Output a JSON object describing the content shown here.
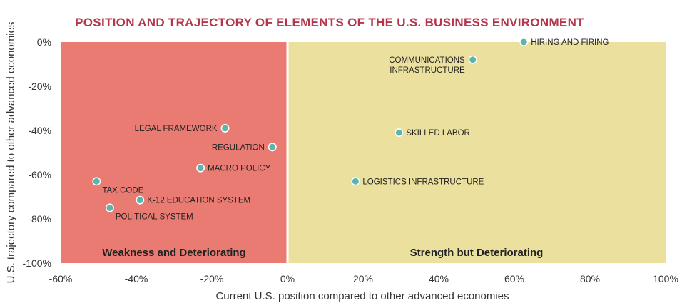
{
  "chart_data": {
    "type": "scatter",
    "title": "POSITION AND TRAJECTORY OF ELEMENTS OF THE U.S. BUSINESS ENVIRONMENT",
    "xlabel": "Current U.S. position compared to other advanced economies",
    "ylabel": "U.S. trajectory compared to other advanced economies",
    "xlim": [
      -60,
      100
    ],
    "ylim": [
      -100,
      0
    ],
    "x_ticks": [
      "-60%",
      "-40%",
      "-20%",
      "0%",
      "20%",
      "40%",
      "60%",
      "80%",
      "100%"
    ],
    "y_ticks": [
      "0%",
      "-20%",
      "-40%",
      "-60%",
      "-80%",
      "-100%"
    ],
    "x_tick_values": [
      -60,
      -40,
      -20,
      0,
      20,
      40,
      60,
      80,
      100
    ],
    "y_tick_values": [
      0,
      -20,
      -40,
      -60,
      -80,
      -100
    ],
    "grid": false,
    "quadrants": [
      {
        "label": "Weakness and Deteriorating",
        "x_range": [
          -60,
          0
        ],
        "y_range": [
          -100,
          0
        ],
        "color": "#e97b73"
      },
      {
        "label": "Strength but Deteriorating",
        "x_range": [
          0,
          100
        ],
        "y_range": [
          -100,
          0
        ],
        "color": "#ebe09d"
      }
    ],
    "marker_color": "#5bb5ad",
    "points": [
      {
        "label": "HIRING AND FIRING",
        "x": 62.5,
        "y": 0,
        "label_side": "right"
      },
      {
        "label": "COMMUNICATIONS INFRASTRUCTURE",
        "lines": [
          "COMMUNICATIONS",
          "INFRASTRUCTURE"
        ],
        "x": 49,
        "y": -8,
        "label_side": "left"
      },
      {
        "label": "SKILLED LABOR",
        "x": 29.5,
        "y": -41,
        "label_side": "right"
      },
      {
        "label": "LOGISTICS INFRASTRUCTURE",
        "x": 18,
        "y": -63,
        "label_side": "right"
      },
      {
        "label": "LEGAL FRAMEWORK",
        "x": -16.5,
        "y": -39,
        "label_side": "left"
      },
      {
        "label": "REGULATION",
        "x": -4,
        "y": -47.5,
        "label_side": "left"
      },
      {
        "label": "MACRO POLICY",
        "x": -23,
        "y": -57,
        "label_side": "right"
      },
      {
        "label": "TAX CODE",
        "x": -50.5,
        "y": -63,
        "label_side": "right-below"
      },
      {
        "label": "K-12 EDUCATION SYSTEM",
        "x": -39,
        "y": -71.5,
        "label_side": "right"
      },
      {
        "label": "POLITICAL SYSTEM",
        "x": -47,
        "y": -75,
        "label_side": "right-below"
      }
    ]
  }
}
